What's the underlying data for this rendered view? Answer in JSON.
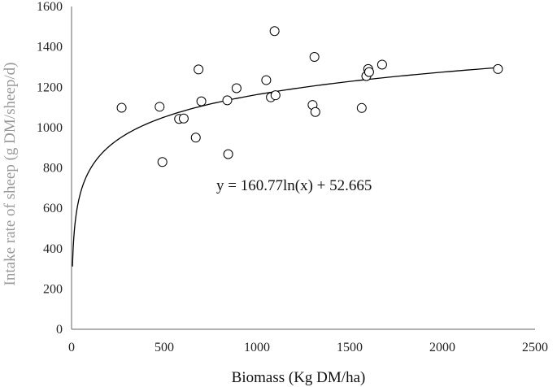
{
  "chart_data": {
    "type": "scatter",
    "xlabel": "Biomass (Kg DM/ha)",
    "ylabel": "Intake rate of sheep (g DM/sheep/d)",
    "xlim": [
      0,
      2500
    ],
    "ylim": [
      0,
      1600
    ],
    "x_ticks": [
      0,
      500,
      1000,
      1500,
      2000,
      2500
    ],
    "y_ticks": [
      0,
      200,
      400,
      600,
      800,
      1000,
      1200,
      1400,
      1600
    ],
    "grid": false,
    "legend": "none",
    "series": [
      {
        "marker": "open-circle",
        "points": [
          [
            270,
            1098
          ],
          [
            475,
            1103
          ],
          [
            490,
            829
          ],
          [
            580,
            1043
          ],
          [
            605,
            1045
          ],
          [
            670,
            950
          ],
          [
            685,
            1288
          ],
          [
            700,
            1130
          ],
          [
            840,
            1135
          ],
          [
            845,
            868
          ],
          [
            890,
            1195
          ],
          [
            1050,
            1235
          ],
          [
            1075,
            1150
          ],
          [
            1095,
            1478
          ],
          [
            1100,
            1160
          ],
          [
            1300,
            1112
          ],
          [
            1310,
            1350
          ],
          [
            1315,
            1077
          ],
          [
            1565,
            1097
          ],
          [
            1590,
            1255
          ],
          [
            1600,
            1290
          ],
          [
            1605,
            1275
          ],
          [
            1675,
            1312
          ],
          [
            2300,
            1290
          ]
        ]
      }
    ],
    "trendline": {
      "type": "logarithmic",
      "a": 160.77,
      "b": 52.665,
      "x_range": [
        5,
        2300
      ]
    },
    "annotations": [
      {
        "text": "y = 160.77ln(x) + 52.665",
        "x": 1000,
        "y": 690
      }
    ],
    "colors": {
      "axis": "#808080",
      "marker_stroke": "#000000",
      "trendline": "#000000",
      "ylabel": "#999999",
      "xlabel": "#111111"
    }
  }
}
